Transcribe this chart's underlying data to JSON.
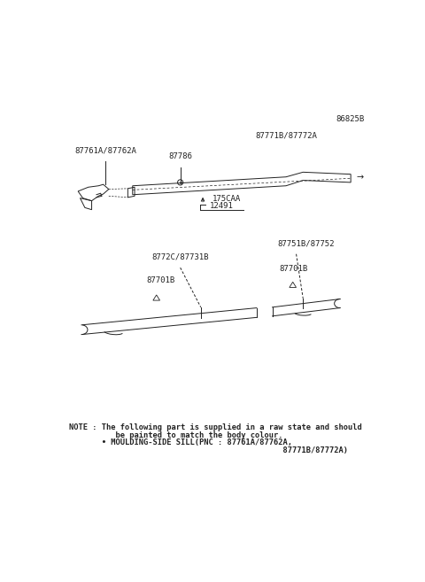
{
  "bg_color": "#ffffff",
  "fig_width": 4.8,
  "fig_height": 6.57,
  "dpi": 100,
  "part_number_top_right": "86825B",
  "label_top_moulding": "87771B/87772A",
  "label_clip": "87786",
  "label_left": "87761A/87762A",
  "label_dim1": "175CAA",
  "label_dim2": "12491",
  "label_bottom_group_left": "8772C/87731B",
  "label_bottom_group_right": "87751B/87752",
  "label_bottom_left_part": "87701B",
  "label_bottom_right_part": "87701B",
  "note_line1": "NOTE : The following part is supplied in a raw state and should",
  "note_line2": "          be painted to match the body colour.",
  "note_line3": "       • MOULDING-SIDE SILL(PNC : 87761A/87762A,",
  "note_line4": "                                              87771B/87772A)"
}
